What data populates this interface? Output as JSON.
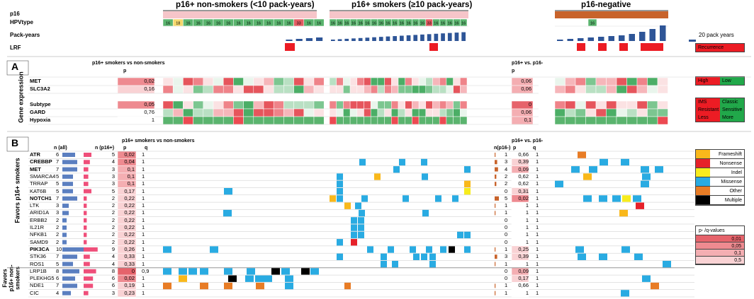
{
  "headers": {
    "nonsmokers": "p16+ non-smokers (<10 pack-years)",
    "smokers": "p16+ smokers (≥10 pack-years)",
    "negative": "p16-negative"
  },
  "track_labels": [
    "p16",
    "HPVtype",
    "Pack-years",
    "LRF"
  ],
  "hpv_values": {
    "nonsmokers": [
      "16",
      "18",
      "16",
      "16",
      "16",
      "16",
      "16",
      "16",
      "16",
      "16",
      "16",
      "16",
      "16",
      "33",
      "16",
      "16"
    ],
    "smokers": [
      "16",
      "16",
      "16",
      "16",
      "16",
      "16",
      "16",
      "16",
      "16",
      "16",
      "16",
      "16",
      "16",
      "16",
      "33",
      "16",
      "16",
      "16",
      "16",
      "16"
    ],
    "negative": [
      "16"
    ]
  },
  "pack_years_legend": "20 pack years",
  "legends": {
    "recurrence": "Recurrence",
    "expression": [
      "High",
      "Low"
    ],
    "subtype": [
      "IMS",
      "Classic"
    ],
    "gard": [
      "Resistant",
      "Sensitive"
    ],
    "hypoxia": [
      "Less",
      "More"
    ],
    "mutation_types": [
      {
        "label": "Frameshift",
        "color": "#f9b81b"
      },
      {
        "label": "Nonsense",
        "color": "#e62129"
      },
      {
        "label": "Indel",
        "color": "#f7ec1d"
      },
      {
        "label": "Missense",
        "color": "#29abe2"
      },
      {
        "label": "Other",
        "color": "#e87c25"
      },
      {
        "label": "Multiple",
        "color": "#000000"
      }
    ],
    "pq_title": "p- /q-values",
    "pq_values": [
      "0,01",
      "0,05",
      "0,1",
      "0,5"
    ]
  },
  "panel_a": {
    "letter": "A",
    "side_label": "Gene expression",
    "col_header_left": "p16+ smokers vs non-smokers",
    "col_header_right": "p16+ vs. p16-",
    "p_header": "p",
    "rows": [
      {
        "name": "MET",
        "p_left": "0,02",
        "p_right": "0,06"
      },
      {
        "name": "SLC3A2",
        "p_left": "0,16",
        "p_right": "0,06"
      },
      {
        "name": "Subtype",
        "p_left": "0,05",
        "p_right": "0"
      },
      {
        "name": "GARD",
        "p_left": "0,76",
        "p_right": "0,06"
      },
      {
        "name": "Hypoxia",
        "p_left": "1",
        "p_right": "0,1"
      }
    ]
  },
  "panel_b": {
    "letter": "B",
    "side_label_top": "Favors p16+ smokers",
    "side_label_bottom": [
      "Favors",
      "p16+ non-",
      "smokers"
    ],
    "col_n_all": "n (all)",
    "col_n_p16pos": "n (p16+)",
    "col_header_left": "p16+ smokers vs non-smokers",
    "col_header_right": "p16+ vs. p16-",
    "col_n_p16neg": "n(p16-)",
    "p_header": "p",
    "q_header": "q",
    "genes": [
      {
        "name": "ATR",
        "bold": true,
        "n_all": "6",
        "n_pos": "5",
        "p": "0,02",
        "q": "1",
        "n_neg": "1",
        "p2": "0,66",
        "q2": "1",
        "bar_all": 6,
        "bar_pos": 5,
        "bar_neg": 1
      },
      {
        "name": "CREBBP",
        "bold": true,
        "n_all": "7",
        "n_pos": "4",
        "p": "0,04",
        "q": "1",
        "n_neg": "3",
        "p2": "0,39",
        "q2": "1",
        "bar_all": 7,
        "bar_pos": 4,
        "bar_neg": 3
      },
      {
        "name": "MET",
        "bold": true,
        "n_all": "7",
        "n_pos": "3",
        "p": "0,1",
        "q": "1",
        "n_neg": "4",
        "p2": "0,09",
        "q2": "1",
        "bar_all": 7,
        "bar_pos": 3,
        "bar_neg": 4
      },
      {
        "name": "SMARCA4",
        "bold": false,
        "n_all": "5",
        "n_pos": "3",
        "p": "0,1",
        "q": "1",
        "n_neg": "2",
        "p2": "0,62",
        "q2": "1",
        "bar_all": 5,
        "bar_pos": 3,
        "bar_neg": 2
      },
      {
        "name": "TRRAP",
        "bold": false,
        "n_all": "5",
        "n_pos": "3",
        "p": "0,1",
        "q": "1",
        "n_neg": "2",
        "p2": "0,62",
        "q2": "1",
        "bar_all": 5,
        "bar_pos": 3,
        "bar_neg": 2
      },
      {
        "name": "KAT6B",
        "bold": false,
        "n_all": "5",
        "n_pos": "5",
        "p": "0,17",
        "q": "1",
        "n_neg": "0",
        "p2": "0,31",
        "q2": "1",
        "bar_all": 5,
        "bar_pos": 5,
        "bar_neg": 0
      },
      {
        "name": "NOTCH1",
        "bold": true,
        "n_all": "7",
        "n_pos": "2",
        "p": "0,22",
        "q": "1",
        "n_neg": "5",
        "p2": "0,02",
        "q2": "1",
        "bar_all": 7,
        "bar_pos": 2,
        "bar_neg": 5
      },
      {
        "name": "LTK",
        "bold": false,
        "n_all": "3",
        "n_pos": "2",
        "p": "0,22",
        "q": "1",
        "n_neg": "1",
        "p2": "1",
        "q2": "1",
        "bar_all": 3,
        "bar_pos": 2,
        "bar_neg": 1
      },
      {
        "name": "ARID1A",
        "bold": false,
        "n_all": "3",
        "n_pos": "2",
        "p": "0,22",
        "q": "1",
        "n_neg": "1",
        "p2": "1",
        "q2": "1",
        "bar_all": 3,
        "bar_pos": 2,
        "bar_neg": 1
      },
      {
        "name": "ERBB2",
        "bold": false,
        "n_all": "2",
        "n_pos": "2",
        "p": "0,22",
        "q": "1",
        "n_neg": "0",
        "p2": "1",
        "q2": "1",
        "bar_all": 2,
        "bar_pos": 2,
        "bar_neg": 0
      },
      {
        "name": "IL21R",
        "bold": false,
        "n_all": "2",
        "n_pos": "2",
        "p": "0,22",
        "q": "1",
        "n_neg": "0",
        "p2": "1",
        "q2": "1",
        "bar_all": 2,
        "bar_pos": 2,
        "bar_neg": 0
      },
      {
        "name": "NFKB1",
        "bold": false,
        "n_all": "2",
        "n_pos": "2",
        "p": "0,22",
        "q": "1",
        "n_neg": "0",
        "p2": "1",
        "q2": "1",
        "bar_all": 2,
        "bar_pos": 2,
        "bar_neg": 0
      },
      {
        "name": "SAMD9",
        "bold": false,
        "n_all": "2",
        "n_pos": "2",
        "p": "0,22",
        "q": "1",
        "n_neg": "0",
        "p2": "1",
        "q2": "1",
        "bar_all": 2,
        "bar_pos": 2,
        "bar_neg": 0
      },
      {
        "name": "PIK3CA",
        "bold": true,
        "n_all": "10",
        "n_pos": "9",
        "p": "0,26",
        "q": "1",
        "n_neg": "1",
        "p2": "0,25",
        "q2": "1",
        "bar_all": 10,
        "bar_pos": 9,
        "bar_neg": 1
      },
      {
        "name": "STK36",
        "bold": false,
        "n_all": "7",
        "n_pos": "4",
        "p": "0,33",
        "q": "1",
        "n_neg": "3",
        "p2": "0,39",
        "q2": "1",
        "bar_all": 7,
        "bar_pos": 4,
        "bar_neg": 3
      },
      {
        "name": "ROS1",
        "bold": false,
        "n_all": "5",
        "n_pos": "4",
        "p": "0,33",
        "q": "1",
        "n_neg": "1",
        "p2": "1",
        "q2": "1",
        "bar_all": 5,
        "bar_pos": 4,
        "bar_neg": 1
      },
      {
        "name": "LRP1B",
        "bold": false,
        "n_all": "8",
        "n_pos": "8",
        "p": "0",
        "q": "0,9",
        "n_neg": "0",
        "p2": "0,09",
        "q2": "1",
        "bar_all": 8,
        "bar_pos": 8,
        "bar_neg": 0
      },
      {
        "name": "PLEKHG5",
        "bold": false,
        "n_all": "6",
        "n_pos": "6",
        "p": "0,02",
        "q": "1",
        "n_neg": "0",
        "p2": "0,17",
        "q2": "1",
        "bar_all": 6,
        "bar_pos": 6,
        "bar_neg": 0
      },
      {
        "name": "NDE1",
        "bold": false,
        "n_all": "7",
        "n_pos": "6",
        "p": "0,19",
        "q": "1",
        "n_neg": "1",
        "p2": "0,66",
        "q2": "1",
        "bar_all": 7,
        "bar_pos": 6,
        "bar_neg": 1
      },
      {
        "name": "CIC",
        "bold": false,
        "n_all": "4",
        "n_pos": "3",
        "p": "0,23",
        "q": "1",
        "n_neg": "1",
        "p2": "1",
        "q2": "1",
        "bar_all": 4,
        "bar_pos": 3,
        "bar_neg": 1
      }
    ]
  }
}
